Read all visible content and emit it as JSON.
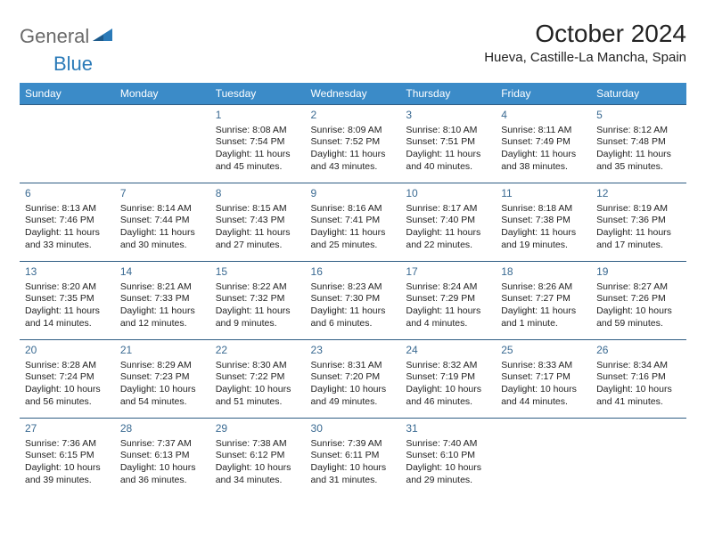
{
  "logo": {
    "text1": "General",
    "text2": "Blue"
  },
  "title": "October 2024",
  "location": "Hueva, Castille-La Mancha, Spain",
  "colors": {
    "header_bg": "#3b8bc8",
    "header_fg": "#ffffff",
    "cell_border": "#2f5d84",
    "daynum_color": "#3a6a92",
    "logo_gray": "#6a6a6a",
    "logo_blue": "#2a7ab8"
  },
  "day_headers": [
    "Sunday",
    "Monday",
    "Tuesday",
    "Wednesday",
    "Thursday",
    "Friday",
    "Saturday"
  ],
  "weeks": [
    [
      null,
      null,
      {
        "n": "1",
        "sunrise": "8:08 AM",
        "sunset": "7:54 PM",
        "daylight": "11 hours and 45 minutes."
      },
      {
        "n": "2",
        "sunrise": "8:09 AM",
        "sunset": "7:52 PM",
        "daylight": "11 hours and 43 minutes."
      },
      {
        "n": "3",
        "sunrise": "8:10 AM",
        "sunset": "7:51 PM",
        "daylight": "11 hours and 40 minutes."
      },
      {
        "n": "4",
        "sunrise": "8:11 AM",
        "sunset": "7:49 PM",
        "daylight": "11 hours and 38 minutes."
      },
      {
        "n": "5",
        "sunrise": "8:12 AM",
        "sunset": "7:48 PM",
        "daylight": "11 hours and 35 minutes."
      }
    ],
    [
      {
        "n": "6",
        "sunrise": "8:13 AM",
        "sunset": "7:46 PM",
        "daylight": "11 hours and 33 minutes."
      },
      {
        "n": "7",
        "sunrise": "8:14 AM",
        "sunset": "7:44 PM",
        "daylight": "11 hours and 30 minutes."
      },
      {
        "n": "8",
        "sunrise": "8:15 AM",
        "sunset": "7:43 PM",
        "daylight": "11 hours and 27 minutes."
      },
      {
        "n": "9",
        "sunrise": "8:16 AM",
        "sunset": "7:41 PM",
        "daylight": "11 hours and 25 minutes."
      },
      {
        "n": "10",
        "sunrise": "8:17 AM",
        "sunset": "7:40 PM",
        "daylight": "11 hours and 22 minutes."
      },
      {
        "n": "11",
        "sunrise": "8:18 AM",
        "sunset": "7:38 PM",
        "daylight": "11 hours and 19 minutes."
      },
      {
        "n": "12",
        "sunrise": "8:19 AM",
        "sunset": "7:36 PM",
        "daylight": "11 hours and 17 minutes."
      }
    ],
    [
      {
        "n": "13",
        "sunrise": "8:20 AM",
        "sunset": "7:35 PM",
        "daylight": "11 hours and 14 minutes."
      },
      {
        "n": "14",
        "sunrise": "8:21 AM",
        "sunset": "7:33 PM",
        "daylight": "11 hours and 12 minutes."
      },
      {
        "n": "15",
        "sunrise": "8:22 AM",
        "sunset": "7:32 PM",
        "daylight": "11 hours and 9 minutes."
      },
      {
        "n": "16",
        "sunrise": "8:23 AM",
        "sunset": "7:30 PM",
        "daylight": "11 hours and 6 minutes."
      },
      {
        "n": "17",
        "sunrise": "8:24 AM",
        "sunset": "7:29 PM",
        "daylight": "11 hours and 4 minutes."
      },
      {
        "n": "18",
        "sunrise": "8:26 AM",
        "sunset": "7:27 PM",
        "daylight": "11 hours and 1 minute."
      },
      {
        "n": "19",
        "sunrise": "8:27 AM",
        "sunset": "7:26 PM",
        "daylight": "10 hours and 59 minutes."
      }
    ],
    [
      {
        "n": "20",
        "sunrise": "8:28 AM",
        "sunset": "7:24 PM",
        "daylight": "10 hours and 56 minutes."
      },
      {
        "n": "21",
        "sunrise": "8:29 AM",
        "sunset": "7:23 PM",
        "daylight": "10 hours and 54 minutes."
      },
      {
        "n": "22",
        "sunrise": "8:30 AM",
        "sunset": "7:22 PM",
        "daylight": "10 hours and 51 minutes."
      },
      {
        "n": "23",
        "sunrise": "8:31 AM",
        "sunset": "7:20 PM",
        "daylight": "10 hours and 49 minutes."
      },
      {
        "n": "24",
        "sunrise": "8:32 AM",
        "sunset": "7:19 PM",
        "daylight": "10 hours and 46 minutes."
      },
      {
        "n": "25",
        "sunrise": "8:33 AM",
        "sunset": "7:17 PM",
        "daylight": "10 hours and 44 minutes."
      },
      {
        "n": "26",
        "sunrise": "8:34 AM",
        "sunset": "7:16 PM",
        "daylight": "10 hours and 41 minutes."
      }
    ],
    [
      {
        "n": "27",
        "sunrise": "7:36 AM",
        "sunset": "6:15 PM",
        "daylight": "10 hours and 39 minutes."
      },
      {
        "n": "28",
        "sunrise": "7:37 AM",
        "sunset": "6:13 PM",
        "daylight": "10 hours and 36 minutes."
      },
      {
        "n": "29",
        "sunrise": "7:38 AM",
        "sunset": "6:12 PM",
        "daylight": "10 hours and 34 minutes."
      },
      {
        "n": "30",
        "sunrise": "7:39 AM",
        "sunset": "6:11 PM",
        "daylight": "10 hours and 31 minutes."
      },
      {
        "n": "31",
        "sunrise": "7:40 AM",
        "sunset": "6:10 PM",
        "daylight": "10 hours and 29 minutes."
      },
      null,
      null
    ]
  ],
  "labels": {
    "sunrise_prefix": "Sunrise: ",
    "sunset_prefix": "Sunset: ",
    "daylight_prefix": "Daylight: "
  }
}
